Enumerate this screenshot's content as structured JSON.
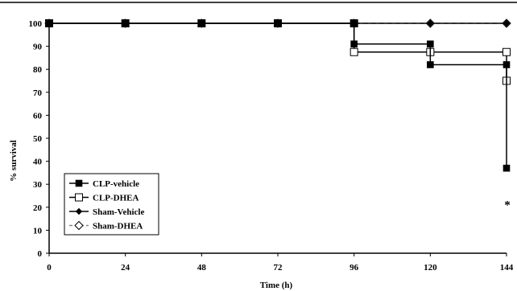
{
  "chart_data": {
    "type": "line",
    "step": true,
    "xlabel": "Time (h)",
    "ylabel": "% survival",
    "xlim": [
      0,
      144
    ],
    "ylim": [
      0,
      100
    ],
    "x_ticks": [
      0,
      24,
      48,
      72,
      96,
      120,
      144
    ],
    "y_ticks": [
      0,
      10,
      20,
      30,
      40,
      50,
      60,
      70,
      80,
      90,
      100
    ],
    "grid": false,
    "legend_position": "bottom-left",
    "series": [
      {
        "name": "CLP-vehicle",
        "marker": "filled-square",
        "line": "solid",
        "x": [
          0,
          24,
          48,
          72,
          96,
          96,
          120,
          120,
          144,
          144
        ],
        "y": [
          100,
          100,
          100,
          100,
          100,
          91,
          91,
          82,
          82,
          37
        ]
      },
      {
        "name": "CLP-DHEA",
        "marker": "open-square",
        "line": "solid",
        "x": [
          0,
          24,
          48,
          72,
          96,
          96,
          120,
          144,
          144
        ],
        "y": [
          100,
          100,
          100,
          100,
          100,
          87.5,
          87.5,
          87.5,
          75
        ]
      },
      {
        "name": "Sham-Vehicle",
        "marker": "filled-diamond",
        "line": "solid",
        "x": [
          0,
          24,
          48,
          72,
          96,
          120,
          144
        ],
        "y": [
          100,
          100,
          100,
          100,
          100,
          100,
          100
        ]
      },
      {
        "name": "Sham-DHEA",
        "marker": "open-diamond",
        "line": "dashed",
        "x": [
          0,
          24,
          48,
          72,
          96,
          120,
          144
        ],
        "y": [
          100,
          100,
          100,
          100,
          100,
          100,
          100
        ]
      }
    ],
    "annotations": [
      {
        "text": "*",
        "x": 144,
        "y": 24
      }
    ]
  }
}
